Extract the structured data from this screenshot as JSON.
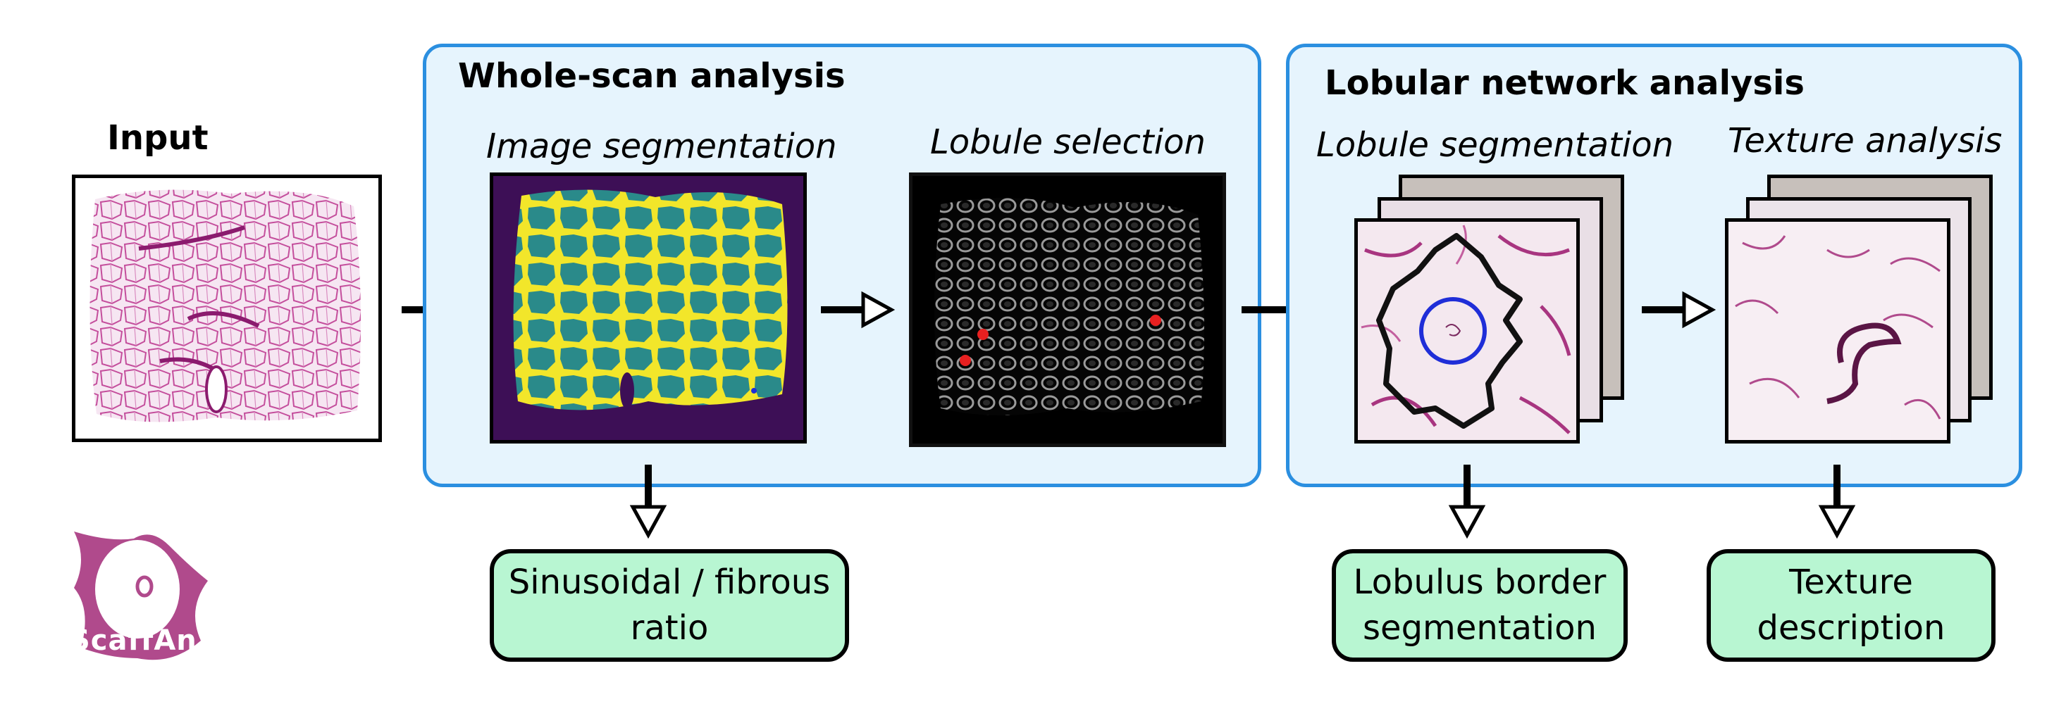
{
  "input": {
    "label": "Input"
  },
  "whole_scan": {
    "title": "Whole-scan analysis",
    "steps": [
      {
        "label": "Image segmentation"
      },
      {
        "label": "Lobule selection"
      }
    ],
    "output": "Sinusoidal / fibrous ratio"
  },
  "lobular": {
    "title": "Lobular network analysis",
    "steps": [
      {
        "label": "Lobule segmentation"
      },
      {
        "label": "Texture analysis"
      }
    ],
    "outputs": [
      "Lobulus border segmentation",
      "Texture description"
    ]
  },
  "logo": {
    "text": "ScaffAn"
  },
  "colors": {
    "panel_border": "#2b8fe0",
    "panel_fill": "#e6f4fd",
    "output_fill": "#b8f6d2",
    "tissue_pink": "#b5338a",
    "segmentation_teal": "#2a8a8a",
    "segmentation_yellow": "#f2e62a",
    "segmentation_bg": "#3d0f56",
    "lobule_circle": "#1f2ed8",
    "selection_dot": "#e82020"
  }
}
